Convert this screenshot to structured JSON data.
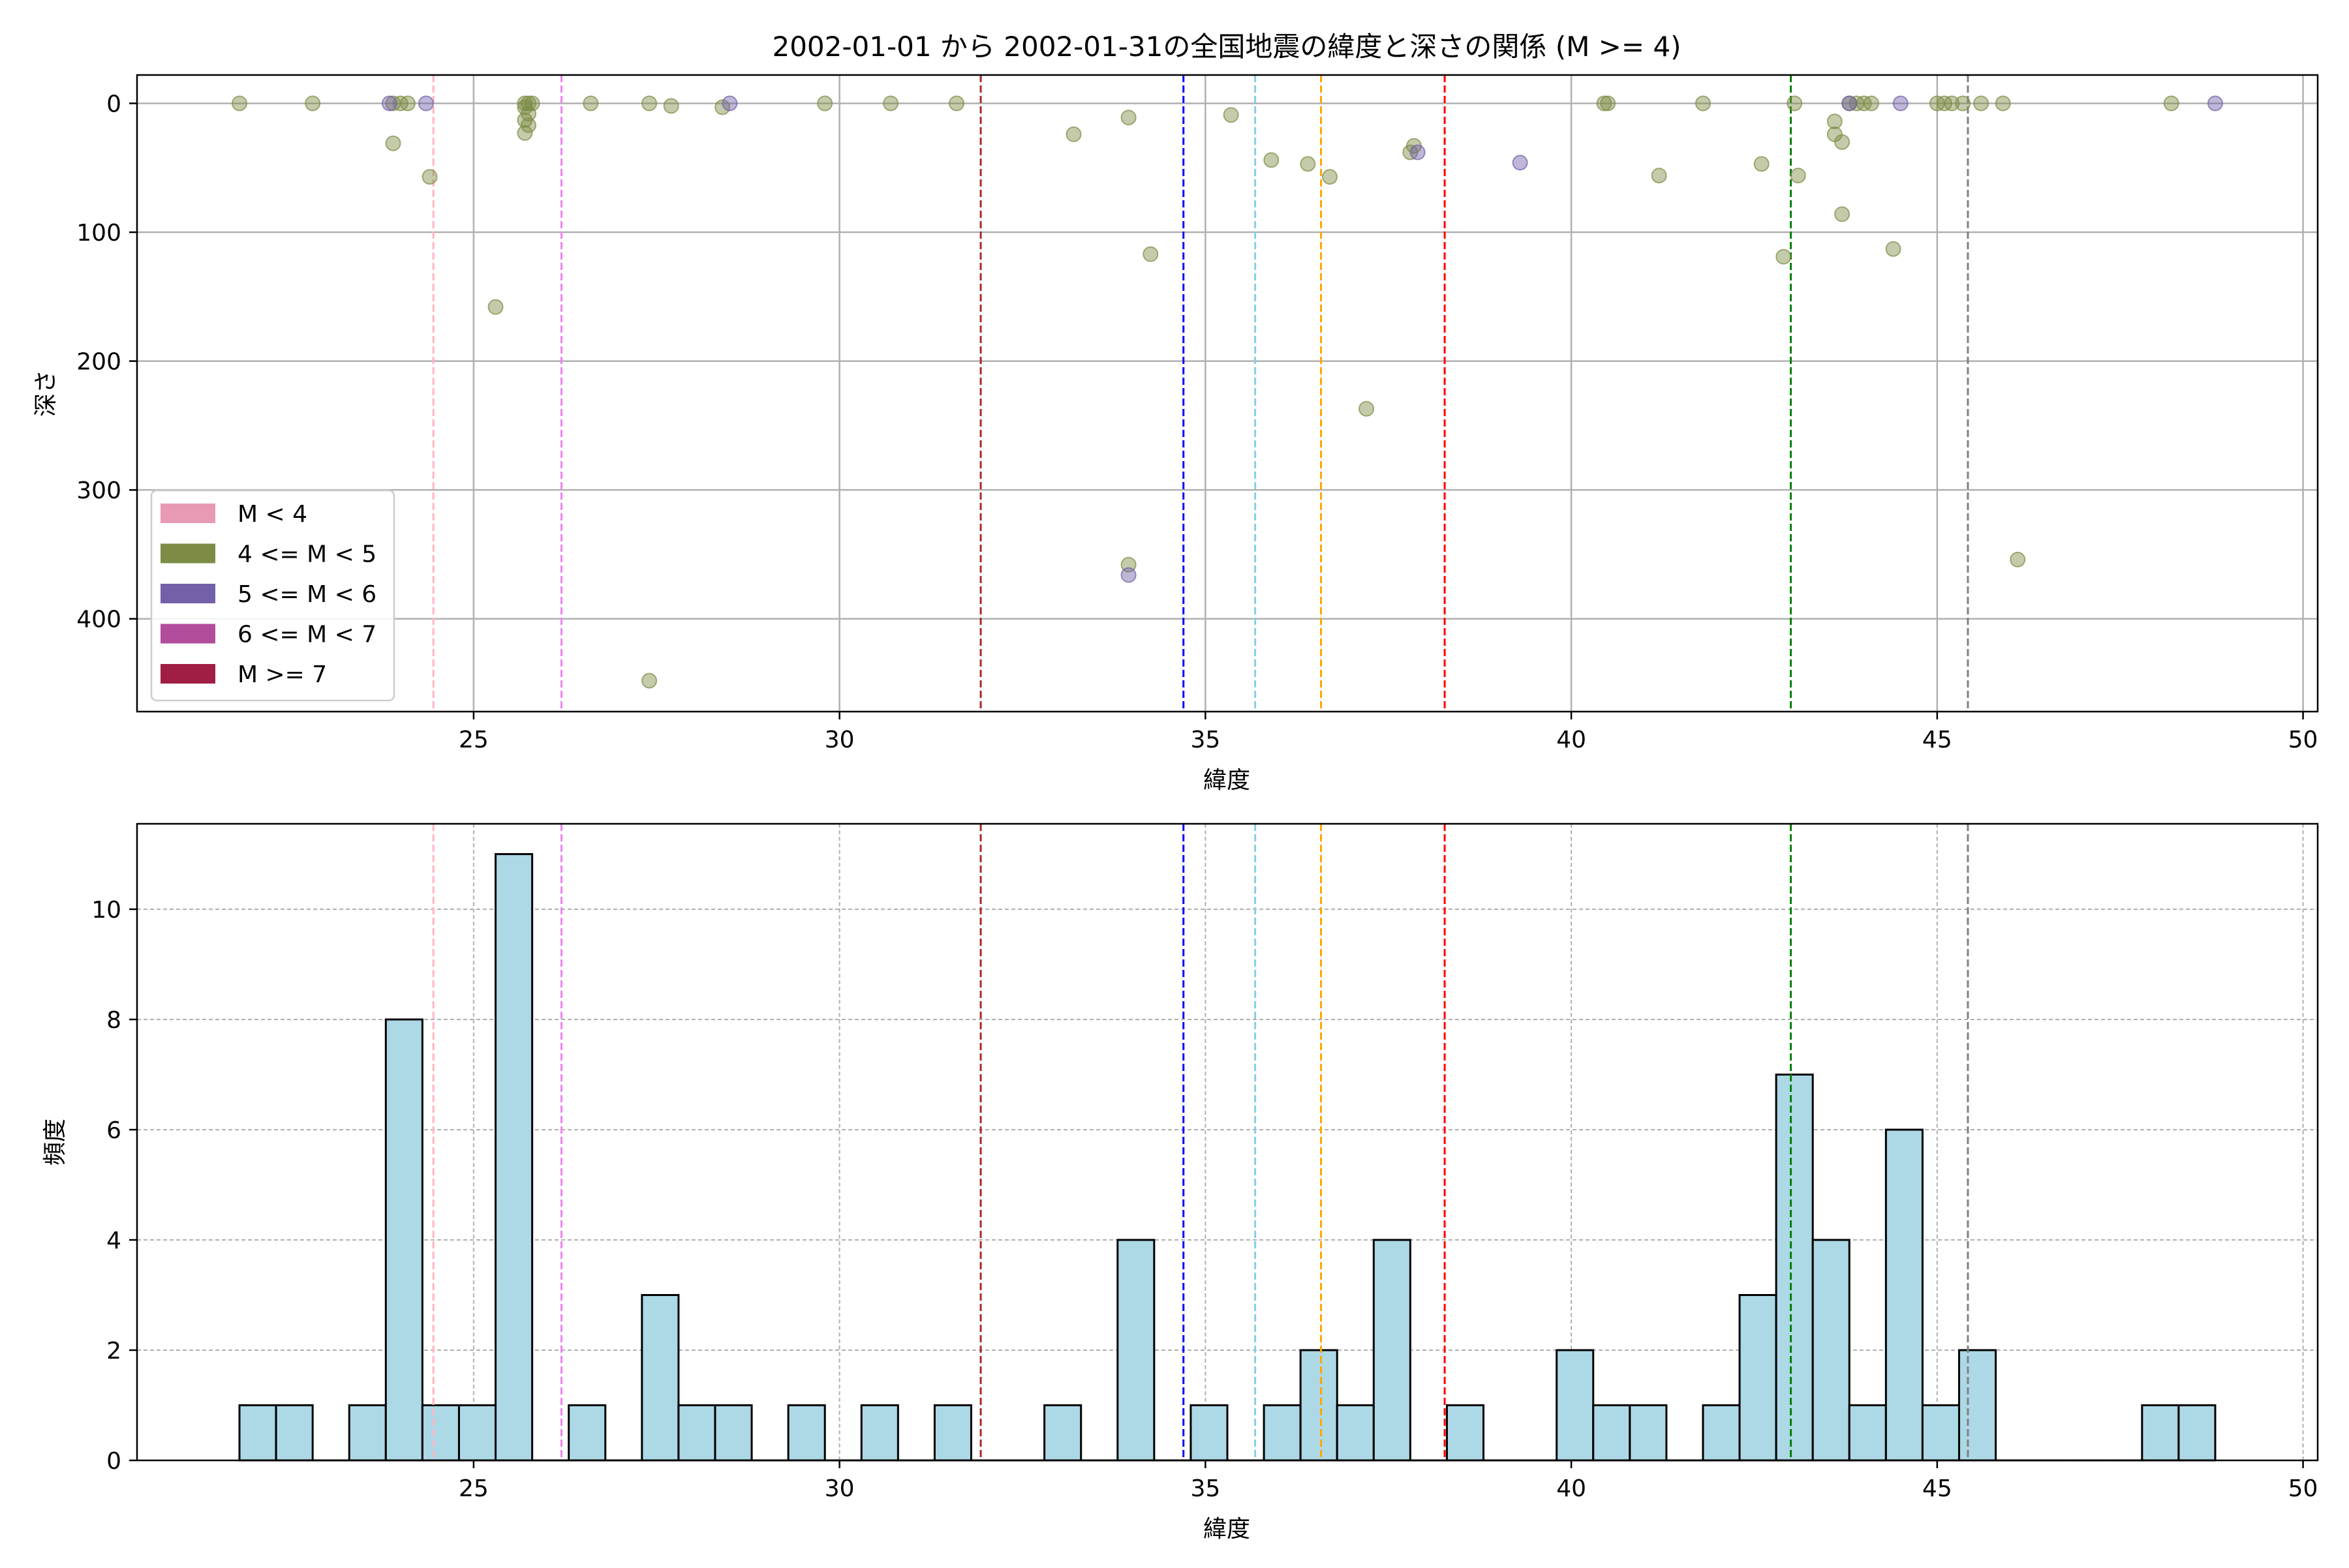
{
  "figure": {
    "title": "2002-01-01 から 2002-01-31の全国地震の緯度と深さの関係 (M >= 4)"
  },
  "colors": {
    "m_lt4": "#e89ab4",
    "m_4_5": "#7d8c45",
    "m_5_6": "#7460a8",
    "m_6_7": "#b24d9c",
    "m_ge7": "#a01e44",
    "hist_fill": "#add8e6"
  },
  "reference_lines": [
    {
      "x": 24.45,
      "color": "#ffb6c1"
    },
    {
      "x": 26.2,
      "color": "#ee82ee"
    },
    {
      "x": 31.93,
      "color": "#a52a2a"
    },
    {
      "x": 34.7,
      "color": "#0000ff"
    },
    {
      "x": 35.68,
      "color": "#87ceeb"
    },
    {
      "x": 36.58,
      "color": "#ffa500"
    },
    {
      "x": 38.27,
      "color": "#ff0000"
    },
    {
      "x": 43.0,
      "color": "#008000"
    },
    {
      "x": 45.42,
      "color": "#808080"
    }
  ],
  "chart_data": [
    {
      "type": "scatter",
      "xlabel": "緯度",
      "ylabel": "深さ",
      "xlim": [
        20.4,
        50.2
      ],
      "ylim": [
        472,
        -22
      ],
      "y_inverted": true,
      "xticks": [
        25,
        30,
        35,
        40,
        45,
        50
      ],
      "yticks": [
        0,
        100,
        200,
        300,
        400
      ],
      "grid": true,
      "legend_position": "lower-left",
      "legend": [
        {
          "label": "M < 4",
          "color_key": "m_lt4"
        },
        {
          "label": "4 <= M < 5",
          "color_key": "m_4_5"
        },
        {
          "label": "5 <= M < 6",
          "color_key": "m_5_6"
        },
        {
          "label": "6 <= M < 7",
          "color_key": "m_6_7"
        },
        {
          "label": "M >= 7",
          "color_key": "m_ge7"
        }
      ],
      "series": [
        {
          "color_key": "m_4_5",
          "points": [
            [
              21.8,
              0
            ],
            [
              22.8,
              0
            ],
            [
              23.9,
              0
            ],
            [
              24.0,
              0
            ],
            [
              24.1,
              0
            ],
            [
              23.9,
              31
            ],
            [
              24.4,
              57
            ],
            [
              25.3,
              158
            ],
            [
              25.7,
              0
            ],
            [
              25.75,
              0
            ],
            [
              25.8,
              0
            ],
            [
              25.7,
              3
            ],
            [
              25.75,
              8
            ],
            [
              25.7,
              13
            ],
            [
              25.75,
              17
            ],
            [
              25.7,
              23
            ],
            [
              26.6,
              0
            ],
            [
              27.4,
              0
            ],
            [
              27.7,
              2
            ],
            [
              28.4,
              3
            ],
            [
              27.4,
              448
            ],
            [
              29.8,
              0
            ],
            [
              30.7,
              0
            ],
            [
              31.6,
              0
            ],
            [
              33.2,
              24
            ],
            [
              33.95,
              11
            ],
            [
              34.25,
              117
            ],
            [
              33.95,
              358
            ],
            [
              35.35,
              9
            ],
            [
              35.9,
              44
            ],
            [
              36.4,
              47
            ],
            [
              36.7,
              57
            ],
            [
              37.2,
              237
            ],
            [
              37.8,
              38
            ],
            [
              37.85,
              33
            ],
            [
              40.45,
              0
            ],
            [
              40.5,
              0
            ],
            [
              41.2,
              56
            ],
            [
              41.8,
              0
            ],
            [
              42.6,
              47
            ],
            [
              42.9,
              119
            ],
            [
              43.05,
              0
            ],
            [
              43.1,
              56
            ],
            [
              43.6,
              14
            ],
            [
              43.6,
              24
            ],
            [
              43.7,
              30
            ],
            [
              43.7,
              86
            ],
            [
              43.8,
              0
            ],
            [
              43.9,
              0
            ],
            [
              44.0,
              0
            ],
            [
              44.1,
              0
            ],
            [
              44.4,
              113
            ],
            [
              45.0,
              0
            ],
            [
              45.1,
              0
            ],
            [
              45.2,
              0
            ],
            [
              45.35,
              0
            ],
            [
              45.6,
              0
            ],
            [
              45.9,
              0
            ],
            [
              46.1,
              354
            ],
            [
              48.2,
              0
            ]
          ]
        },
        {
          "color_key": "m_5_6",
          "points": [
            [
              23.85,
              0
            ],
            [
              24.35,
              0
            ],
            [
              28.5,
              0
            ],
            [
              33.95,
              366
            ],
            [
              37.9,
              38
            ],
            [
              39.3,
              46
            ],
            [
              43.8,
              0
            ],
            [
              44.5,
              0
            ],
            [
              48.8,
              0
            ]
          ]
        }
      ]
    },
    {
      "type": "bar",
      "subtype": "histogram",
      "xlabel": "緯度",
      "ylabel": "頻度",
      "xlim": [
        20.4,
        50.2
      ],
      "ylim": [
        0,
        11.55
      ],
      "xticks": [
        25,
        30,
        35,
        40,
        45,
        50
      ],
      "yticks": [
        0,
        2,
        4,
        6,
        8,
        10
      ],
      "grid": true,
      "bin_start": 21.8,
      "bin_width": 0.5,
      "counts": [
        1,
        1,
        0,
        1,
        8,
        1,
        1,
        11,
        0,
        1,
        0,
        3,
        1,
        1,
        0,
        1,
        0,
        1,
        0,
        1,
        0,
        0,
        1,
        0,
        4,
        0,
        1,
        0,
        1,
        2,
        1,
        4,
        0,
        1,
        0,
        0,
        2,
        1,
        1,
        0,
        1,
        3,
        7,
        4,
        1,
        6,
        1,
        2,
        0,
        0,
        0,
        0,
        1,
        1
      ]
    }
  ]
}
